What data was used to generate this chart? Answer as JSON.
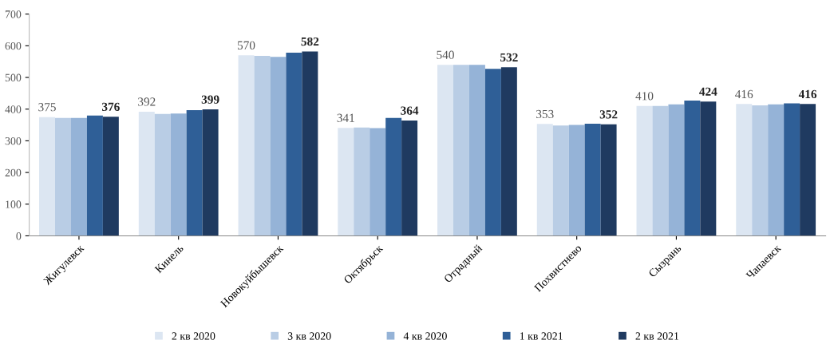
{
  "chart_data": {
    "type": "bar",
    "categories": [
      "Жигулевск",
      "Кинель",
      "Новокуйбышевск",
      "Октябрьск",
      "Отрадный",
      "Похвистнево",
      "Сызрань",
      "Чапаевск"
    ],
    "series": [
      {
        "name": "2 кв 2020",
        "color": "#dce6f2",
        "values": [
          375,
          392,
          570,
          341,
          540,
          353,
          410,
          416
        ],
        "value_labels": [
          "375",
          "392",
          "570",
          "341",
          "540",
          "353",
          "410",
          "416"
        ]
      },
      {
        "name": "3 кв 2020",
        "color": "#b9cde5",
        "values": [
          372,
          385,
          568,
          342,
          540,
          348,
          410,
          412
        ]
      },
      {
        "name": "4 кв 2020",
        "color": "#95b3d7",
        "values": [
          372,
          386,
          565,
          340,
          540,
          350,
          415,
          415
        ]
      },
      {
        "name": "1 кв 2021",
        "color": "#2f5f97",
        "values": [
          380,
          397,
          578,
          372,
          527,
          354,
          427,
          418
        ]
      },
      {
        "name": "2 кв 2021",
        "color": "#1f3a60",
        "values": [
          376,
          399,
          582,
          364,
          532,
          352,
          424,
          416
        ],
        "value_labels": [
          "376",
          "399",
          "582",
          "364",
          "532",
          "352",
          "424",
          "416"
        ]
      }
    ],
    "ylim": [
      0,
      700
    ],
    "yticks": [
      0,
      100,
      200,
      300,
      400,
      500,
      600,
      700
    ],
    "grid": false,
    "legend": "bottom"
  }
}
